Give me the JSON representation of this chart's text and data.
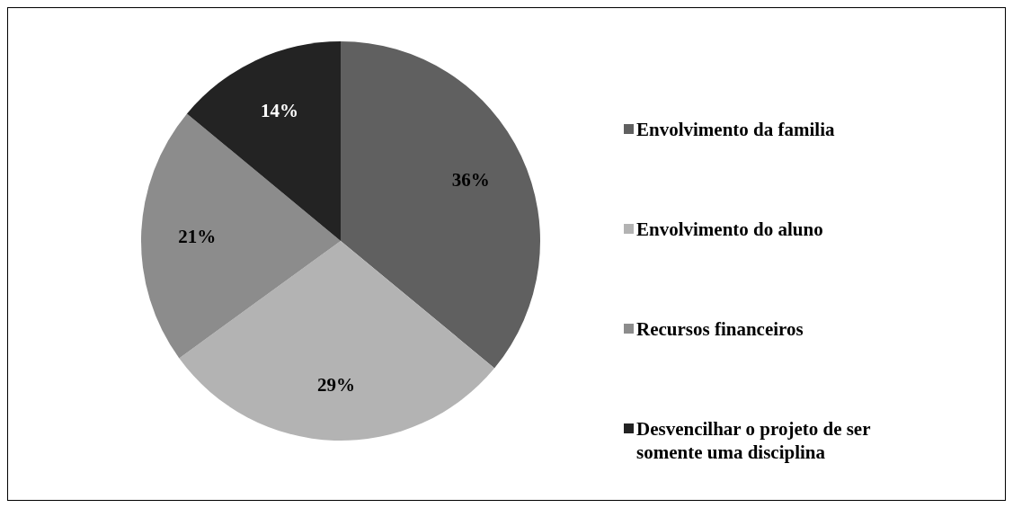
{
  "chart_data": {
    "type": "pie",
    "categories": [
      "Envolvimento da familia",
      "Envolvimento do aluno",
      "Recursos financeiros",
      "Desvencilhar o projeto de ser somente uma disciplina"
    ],
    "values": [
      36,
      29,
      21,
      14
    ],
    "colors": [
      "#606060",
      "#b3b3b3",
      "#8c8c8c",
      "#232323"
    ],
    "value_labels": [
      "36%",
      "29%",
      "21%",
      "14%"
    ],
    "legend": "right"
  }
}
